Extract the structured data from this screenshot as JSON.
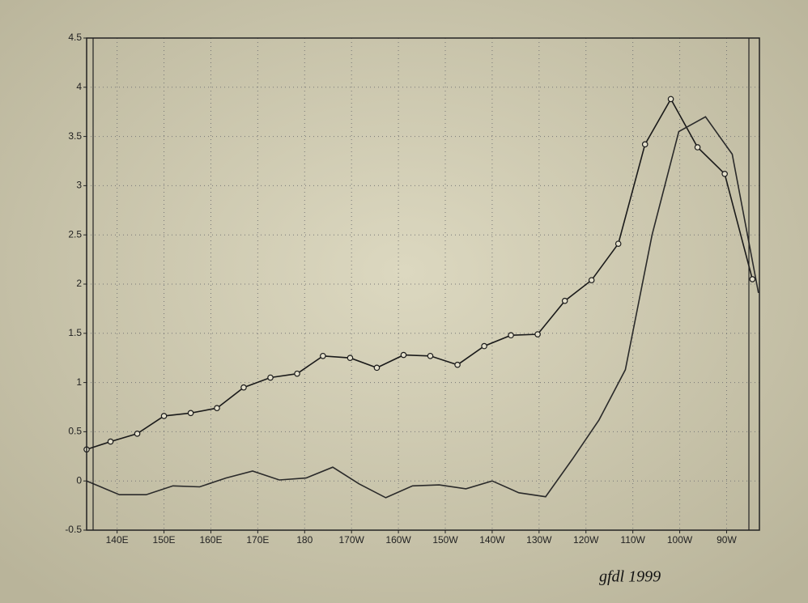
{
  "chart_data": {
    "type": "line",
    "annotation": "gfdl 1999",
    "xlim": [
      133.5,
      277
    ],
    "ylim": [
      -0.5,
      4.5
    ],
    "grid": true,
    "xticks": [
      {
        "value": 140,
        "label": "140E"
      },
      {
        "value": 150,
        "label": "150E"
      },
      {
        "value": 160,
        "label": "160E"
      },
      {
        "value": 170,
        "label": "170E"
      },
      {
        "value": 180,
        "label": "180"
      },
      {
        "value": 190,
        "label": "170W"
      },
      {
        "value": 200,
        "label": "160W"
      },
      {
        "value": 210,
        "label": "150W"
      },
      {
        "value": 220,
        "label": "140W"
      },
      {
        "value": 230,
        "label": "130W"
      },
      {
        "value": 240,
        "label": "120W"
      },
      {
        "value": 250,
        "label": "110W"
      },
      {
        "value": 260,
        "label": "100W"
      },
      {
        "value": 270,
        "label": "90W"
      }
    ],
    "yticks": [
      -0.5,
      0,
      0.5,
      1,
      1.5,
      2,
      2.5,
      3,
      3.5,
      4,
      4.5
    ],
    "series": [
      {
        "color": "#1a1a1a",
        "marker": "circle",
        "x": [
          133.5,
          138.6,
          144.3,
          150.0,
          155.7,
          161.3,
          167.0,
          172.7,
          178.4,
          183.9,
          189.7,
          195.4,
          201.1,
          206.8,
          212.6,
          218.3,
          224.0,
          229.7,
          235.5,
          241.2,
          246.9,
          252.6,
          258.1,
          263.8,
          269.6,
          275.5
        ],
        "values": [
          0.32,
          0.4,
          0.48,
          0.66,
          0.69,
          0.74,
          0.95,
          1.05,
          1.09,
          1.27,
          1.25,
          1.15,
          1.28,
          1.27,
          1.18,
          1.37,
          1.48,
          1.49,
          1.83,
          2.04,
          2.41,
          3.42,
          3.88,
          3.39,
          3.12,
          2.05
        ]
      },
      {
        "color": "#2a2a2a",
        "marker": "none",
        "x": [
          133.5,
          140.5,
          146.2,
          151.9,
          157.6,
          163.2,
          168.9,
          174.6,
          180.3,
          186.0,
          191.6,
          197.3,
          203.0,
          208.7,
          214.4,
          220.0,
          225.7,
          231.4,
          237.1,
          242.8,
          248.4,
          254.1,
          259.8,
          265.5,
          271.2,
          276.8
        ],
        "values": [
          0.0,
          -0.14,
          -0.14,
          -0.05,
          -0.06,
          0.03,
          0.1,
          0.01,
          0.03,
          0.14,
          -0.03,
          -0.17,
          -0.05,
          -0.04,
          -0.08,
          0.0,
          -0.12,
          -0.16,
          0.22,
          0.62,
          1.13,
          2.5,
          3.55,
          3.7,
          3.32,
          1.91
        ]
      }
    ]
  }
}
